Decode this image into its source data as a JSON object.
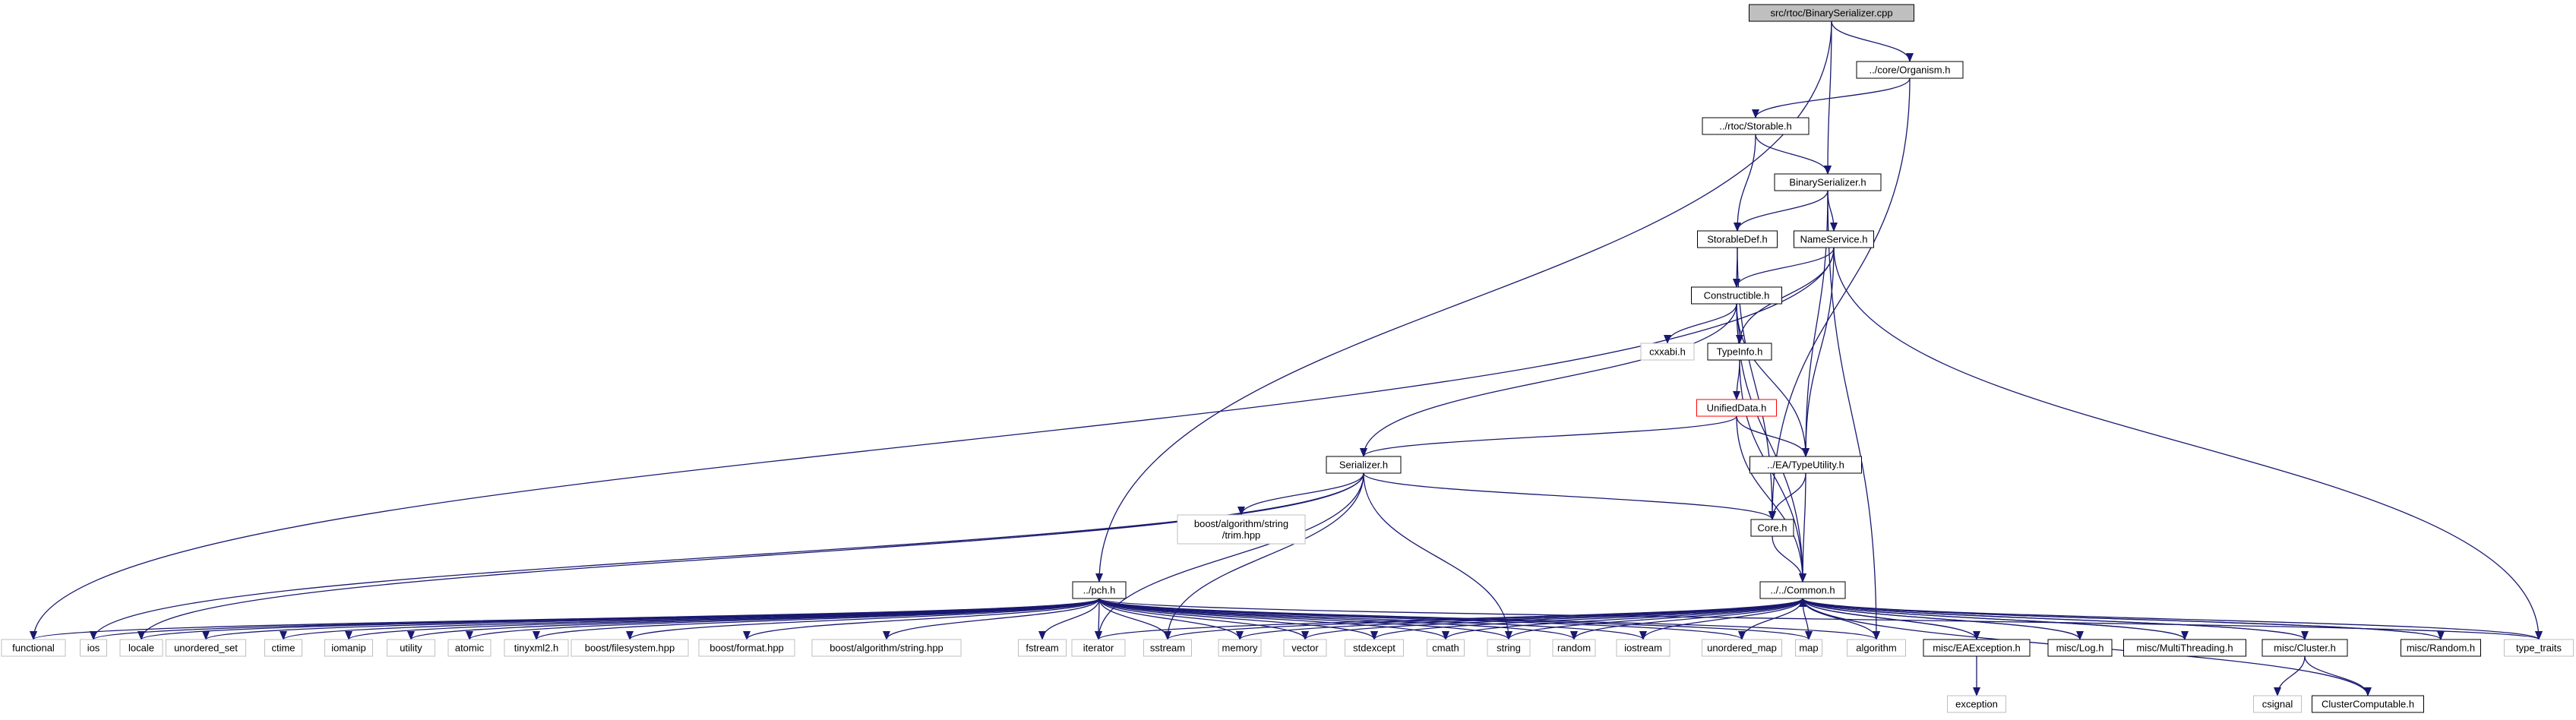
{
  "diagram": {
    "nodes": [
      {
        "id": "root",
        "label": "src/rtoc/BinarySerializer.cpp",
        "style": "root",
        "interactable": false
      },
      {
        "id": "organism",
        "label": "../core/Organism.h",
        "style": "link"
      },
      {
        "id": "storable",
        "label": "../rtoc/Storable.h",
        "style": "link"
      },
      {
        "id": "binser",
        "label": "BinarySerializer.h",
        "style": "link"
      },
      {
        "id": "storabledef",
        "label": "StorableDef.h",
        "style": "link"
      },
      {
        "id": "nameservice",
        "label": "NameService.h",
        "style": "link"
      },
      {
        "id": "constructible",
        "label": "Constructible.h",
        "style": "link"
      },
      {
        "id": "cxxabi",
        "label": "cxxabi.h",
        "style": "gray"
      },
      {
        "id": "typeinfo",
        "label": "TypeInfo.h",
        "style": "link"
      },
      {
        "id": "unified",
        "label": "UnifiedData.h",
        "style": "red"
      },
      {
        "id": "serializer",
        "label": "Serializer.h",
        "style": "link"
      },
      {
        "id": "typeutility",
        "label": "../EA/TypeUtility.h",
        "style": "link"
      },
      {
        "id": "trim",
        "label": "boost/algorithm/string\n/trim.hpp",
        "style": "gray"
      },
      {
        "id": "core",
        "label": "Core.h",
        "style": "link"
      },
      {
        "id": "pch",
        "label": "../pch.h",
        "style": "link"
      },
      {
        "id": "common",
        "label": "../../Common.h",
        "style": "link"
      },
      {
        "id": "functional",
        "label": "functional",
        "style": "gray"
      },
      {
        "id": "ios",
        "label": "ios",
        "style": "gray"
      },
      {
        "id": "locale",
        "label": "locale",
        "style": "gray"
      },
      {
        "id": "unordered_set",
        "label": "unordered_set",
        "style": "gray"
      },
      {
        "id": "ctime",
        "label": "ctime",
        "style": "gray"
      },
      {
        "id": "iomanip",
        "label": "iomanip",
        "style": "gray"
      },
      {
        "id": "utility",
        "label": "utility",
        "style": "gray"
      },
      {
        "id": "atomic",
        "label": "atomic",
        "style": "gray"
      },
      {
        "id": "tinyxml2",
        "label": "tinyxml2.h",
        "style": "gray"
      },
      {
        "id": "filesystem",
        "label": "boost/filesystem.hpp",
        "style": "gray"
      },
      {
        "id": "format",
        "label": "boost/format.hpp",
        "style": "gray"
      },
      {
        "id": "algostring",
        "label": "boost/algorithm/string.hpp",
        "style": "gray"
      },
      {
        "id": "fstream",
        "label": "fstream",
        "style": "gray"
      },
      {
        "id": "iterator",
        "label": "iterator",
        "style": "gray"
      },
      {
        "id": "sstream",
        "label": "sstream",
        "style": "gray"
      },
      {
        "id": "memory",
        "label": "memory",
        "style": "gray"
      },
      {
        "id": "vector",
        "label": "vector",
        "style": "gray"
      },
      {
        "id": "stdexcept",
        "label": "stdexcept",
        "style": "gray"
      },
      {
        "id": "cmath",
        "label": "cmath",
        "style": "gray"
      },
      {
        "id": "string",
        "label": "string",
        "style": "gray"
      },
      {
        "id": "random",
        "label": "random",
        "style": "gray"
      },
      {
        "id": "iostream",
        "label": "iostream",
        "style": "gray"
      },
      {
        "id": "unordered_map",
        "label": "unordered_map",
        "style": "gray"
      },
      {
        "id": "map",
        "label": "map",
        "style": "gray"
      },
      {
        "id": "algorithm",
        "label": "algorithm",
        "style": "gray"
      },
      {
        "id": "eaexception",
        "label": "misc/EAException.h",
        "style": "link"
      },
      {
        "id": "log",
        "label": "misc/Log.h",
        "style": "link"
      },
      {
        "id": "multithreading",
        "label": "misc/MultiThreading.h",
        "style": "link"
      },
      {
        "id": "cluster",
        "label": "misc/Cluster.h",
        "style": "link"
      },
      {
        "id": "randomh",
        "label": "misc/Random.h",
        "style": "link"
      },
      {
        "id": "type_traits",
        "label": "type_traits",
        "style": "gray"
      },
      {
        "id": "exception",
        "label": "exception",
        "style": "gray"
      },
      {
        "id": "csignal",
        "label": "csignal",
        "style": "gray"
      },
      {
        "id": "clustercomp",
        "label": "ClusterComputable.h",
        "style": "link"
      }
    ],
    "edges": [
      [
        "root",
        "organism"
      ],
      [
        "root",
        "binser"
      ],
      [
        "root",
        "pch"
      ],
      [
        "organism",
        "storable"
      ],
      [
        "organism",
        "core"
      ],
      [
        "storable",
        "binser"
      ],
      [
        "storable",
        "storabledef"
      ],
      [
        "binser",
        "storabledef"
      ],
      [
        "binser",
        "nameservice"
      ],
      [
        "binser",
        "typeutility"
      ],
      [
        "binser",
        "algorithm"
      ],
      [
        "storabledef",
        "constructible"
      ],
      [
        "storabledef",
        "core"
      ],
      [
        "nameservice",
        "constructible"
      ],
      [
        "nameservice",
        "typeinfo"
      ],
      [
        "nameservice",
        "typeutility"
      ],
      [
        "nameservice",
        "functional"
      ],
      [
        "nameservice",
        "type_traits"
      ],
      [
        "constructible",
        "cxxabi"
      ],
      [
        "constructible",
        "typeinfo"
      ],
      [
        "constructible",
        "serializer"
      ],
      [
        "constructible",
        "typeutility"
      ],
      [
        "constructible",
        "common"
      ],
      [
        "typeinfo",
        "unified"
      ],
      [
        "typeinfo",
        "common"
      ],
      [
        "unified",
        "serializer"
      ],
      [
        "unified",
        "typeutility"
      ],
      [
        "unified",
        "common"
      ],
      [
        "serializer",
        "trim"
      ],
      [
        "serializer",
        "core"
      ],
      [
        "serializer",
        "ios"
      ],
      [
        "serializer",
        "locale"
      ],
      [
        "serializer",
        "iterator"
      ],
      [
        "serializer",
        "sstream"
      ],
      [
        "serializer",
        "string"
      ],
      [
        "typeutility",
        "core"
      ],
      [
        "typeutility",
        "common"
      ],
      [
        "core",
        "common"
      ],
      [
        "pch",
        "functional"
      ],
      [
        "pch",
        "ios"
      ],
      [
        "pch",
        "locale"
      ],
      [
        "pch",
        "unordered_set"
      ],
      [
        "pch",
        "ctime"
      ],
      [
        "pch",
        "iomanip"
      ],
      [
        "pch",
        "utility"
      ],
      [
        "pch",
        "atomic"
      ],
      [
        "pch",
        "tinyxml2"
      ],
      [
        "pch",
        "filesystem"
      ],
      [
        "pch",
        "format"
      ],
      [
        "pch",
        "algostring"
      ],
      [
        "pch",
        "fstream"
      ],
      [
        "pch",
        "iterator"
      ],
      [
        "pch",
        "sstream"
      ],
      [
        "pch",
        "memory"
      ],
      [
        "pch",
        "vector"
      ],
      [
        "pch",
        "stdexcept"
      ],
      [
        "pch",
        "cmath"
      ],
      [
        "pch",
        "string"
      ],
      [
        "pch",
        "random"
      ],
      [
        "pch",
        "iostream"
      ],
      [
        "pch",
        "unordered_map"
      ],
      [
        "pch",
        "map"
      ],
      [
        "pch",
        "algorithm"
      ],
      [
        "pch",
        "type_traits"
      ],
      [
        "common",
        "vector"
      ],
      [
        "common",
        "stdexcept"
      ],
      [
        "common",
        "cmath"
      ],
      [
        "common",
        "string"
      ],
      [
        "common",
        "random"
      ],
      [
        "common",
        "iostream"
      ],
      [
        "common",
        "unordered_map"
      ],
      [
        "common",
        "map"
      ],
      [
        "common",
        "algorithm"
      ],
      [
        "common",
        "memory"
      ],
      [
        "common",
        "sstream"
      ],
      [
        "common",
        "iterator"
      ],
      [
        "common",
        "eaexception"
      ],
      [
        "common",
        "log"
      ],
      [
        "common",
        "multithreading"
      ],
      [
        "common",
        "cluster"
      ],
      [
        "common",
        "randomh"
      ],
      [
        "common",
        "type_traits"
      ],
      [
        "eaexception",
        "exception"
      ],
      [
        "cluster",
        "csignal"
      ],
      [
        "cluster",
        "clustercomp"
      ],
      [
        "eaexception",
        "common"
      ],
      [
        "log",
        "common"
      ],
      [
        "multithreading",
        "common"
      ],
      [
        "cluster",
        "common"
      ],
      [
        "randomh",
        "common"
      ],
      [
        "clustercomp",
        "common"
      ]
    ]
  }
}
